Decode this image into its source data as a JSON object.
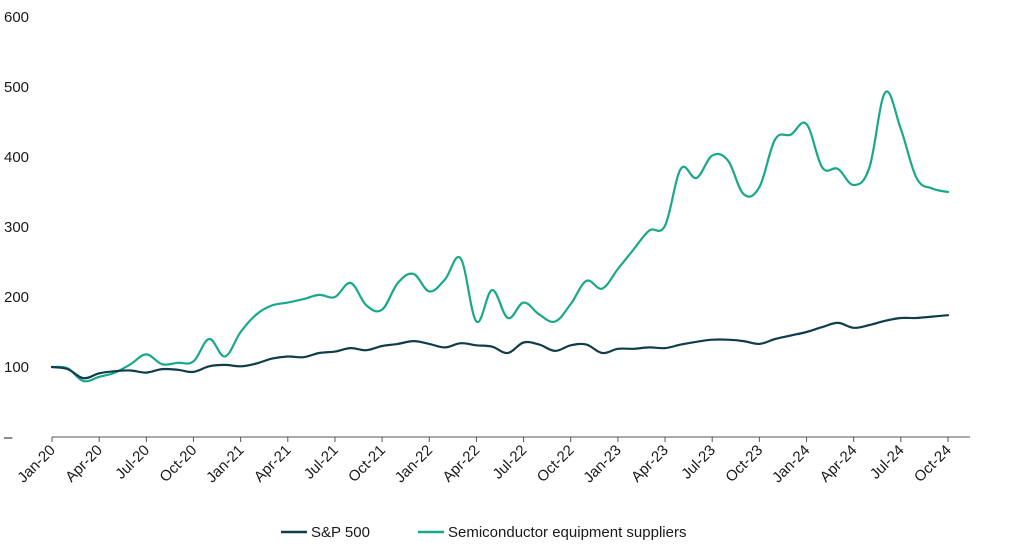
{
  "chart_data": {
    "type": "line",
    "categories": [
      "Jan-20",
      "Feb-20",
      "Mar-20",
      "Apr-20",
      "May-20",
      "Jun-20",
      "Jul-20",
      "Aug-20",
      "Sep-20",
      "Oct-20",
      "Nov-20",
      "Dec-20",
      "Jan-21",
      "Feb-21",
      "Mar-21",
      "Apr-21",
      "May-21",
      "Jun-21",
      "Jul-21",
      "Aug-21",
      "Sep-21",
      "Oct-21",
      "Nov-21",
      "Dec-21",
      "Jan-22",
      "Feb-22",
      "Mar-22",
      "Apr-22",
      "May-22",
      "Jun-22",
      "Jul-22",
      "Aug-22",
      "Sep-22",
      "Oct-22",
      "Nov-22",
      "Dec-22",
      "Jan-23",
      "Feb-23",
      "Mar-23",
      "Apr-23",
      "May-23",
      "Jun-23",
      "Jul-23",
      "Aug-23",
      "Sep-23",
      "Oct-23",
      "Nov-23",
      "Dec-23",
      "Jan-24",
      "Feb-24",
      "Mar-24",
      "Apr-24",
      "May-24",
      "Jun-24",
      "Jul-24",
      "Aug-24",
      "Sep-24",
      "Oct-24"
    ],
    "x_tick_labels": [
      "Jan-20",
      "Apr-20",
      "Jul-20",
      "Oct-20",
      "Jan-21",
      "Apr-21",
      "Jul-21",
      "Oct-21",
      "Jan-22",
      "Apr-22",
      "Jul-22",
      "Oct-22",
      "Jan-23",
      "Apr-23",
      "Jul-23",
      "Oct-23",
      "Jan-24",
      "Apr-24",
      "Jul-24",
      "Oct-24"
    ],
    "y_tick_labels": [
      "–",
      "100",
      "200",
      "300",
      "400",
      "500",
      "600"
    ],
    "y_ticks": [
      0,
      100,
      200,
      300,
      400,
      500,
      600
    ],
    "ylim": [
      0,
      600
    ],
    "title": "",
    "xlabel": "",
    "ylabel": "",
    "grid": false,
    "legend_position": "bottom-center",
    "series": [
      {
        "name": "S&P 500",
        "color": "#0f3d4a",
        "values": [
          100,
          97,
          84,
          91,
          94,
          95,
          92,
          97,
          96,
          93,
          101,
          103,
          101,
          105,
          112,
          115,
          114,
          120,
          122,
          127,
          124,
          130,
          133,
          137,
          133,
          128,
          134,
          131,
          129,
          120,
          135,
          132,
          123,
          131,
          132,
          120,
          126,
          126,
          128,
          127,
          132,
          136,
          139,
          139,
          137,
          133,
          140,
          145,
          150,
          157,
          163,
          156,
          160,
          166,
          170,
          170,
          172,
          174
        ]
      },
      {
        "name": "Semiconductor equipment suppliers",
        "color": "#1aa88a",
        "values": [
          100,
          98,
          80,
          86,
          92,
          104,
          118,
          104,
          106,
          108,
          140,
          115,
          150,
          175,
          188,
          192,
          197,
          203,
          200,
          220,
          188,
          182,
          220,
          233,
          208,
          225,
          255,
          165,
          210,
          170,
          192,
          175,
          165,
          190,
          223,
          212,
          240,
          268,
          295,
          302,
          383,
          370,
          402,
          395,
          347,
          357,
          425,
          432,
          447,
          385,
          383,
          360,
          385,
          492,
          440,
          370,
          355,
          350
        ]
      }
    ]
  }
}
